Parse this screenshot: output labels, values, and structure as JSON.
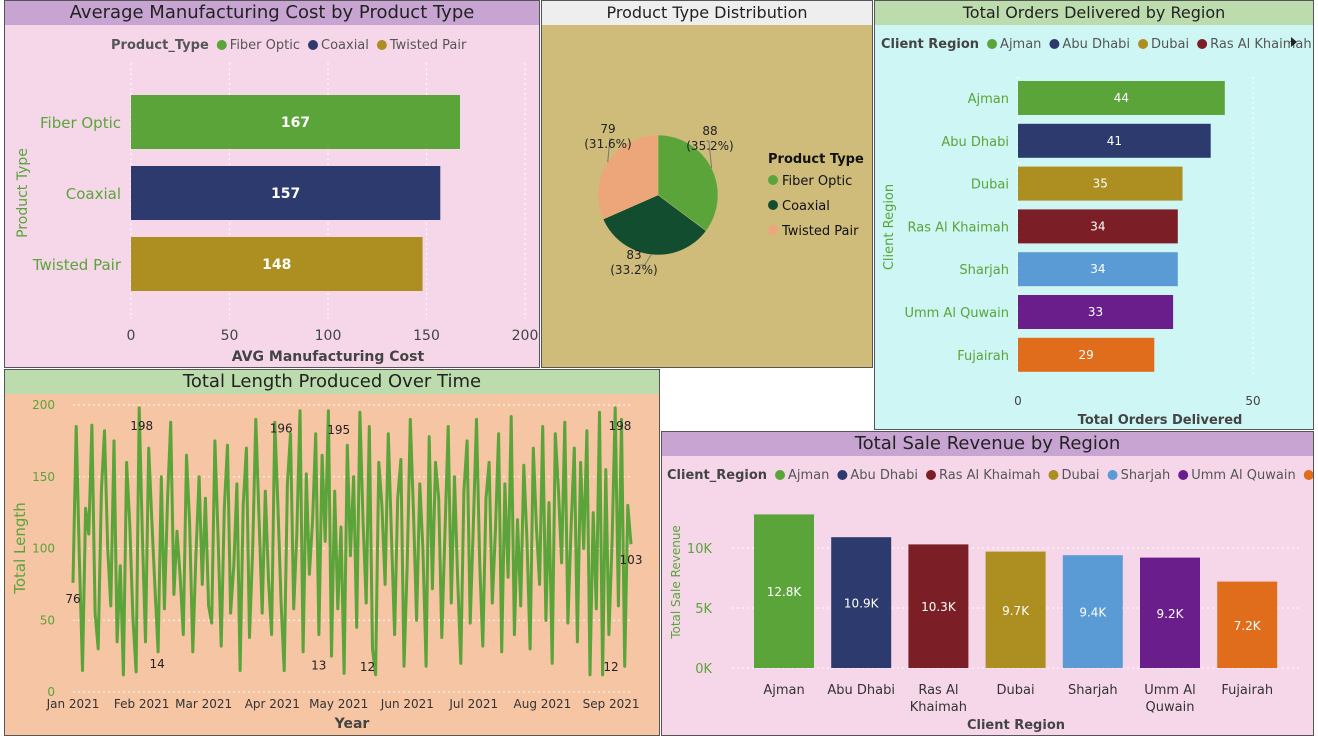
{
  "colors": {
    "fiber": "#5aa43a",
    "coaxial": "#2c3a6e",
    "twisted": "#ad8e20",
    "pie_fiber": "#5aa43a",
    "pie_coaxial": "#124d30",
    "pie_twisted": "#eda679",
    "ajman": "#5aa43a",
    "abudhabi": "#2c3a6e",
    "dubai": "#ad8e20",
    "rak": "#7c1e26",
    "sharjah": "#5b9bd5",
    "uaq": "#6a1e8c",
    "fujairah": "#e06d1c",
    "axis_green": "#5aa43a",
    "axis_text": "#444444"
  },
  "panel1": {
    "title": "Average Manufacturing Cost by Product Type",
    "legend_title": "Product_Type",
    "legend": [
      "Fiber Optic",
      "Coaxial",
      "Twisted Pair"
    ]
  },
  "panel2": {
    "title": "Product Type Distribution",
    "legend_title": "Product Type",
    "legend": [
      "Fiber Optic",
      "Coaxial",
      "Twisted Pair"
    ]
  },
  "panel3": {
    "title": "Total Orders Delivered by Region",
    "legend_title": "Client Region",
    "legend": [
      "Ajman",
      "Abu Dhabi",
      "Dubai",
      "Ras Al Khaimah"
    ]
  },
  "panel4": {
    "title": "Total Length Produced Over Time"
  },
  "panel5": {
    "title": "Total Sale Revenue by Region",
    "legend_title": "Client_Region",
    "legend": [
      "Ajman",
      "Abu Dhabi",
      "Ras Al Khaimah",
      "Dubai",
      "Sharjah",
      "Umm Al Quwain",
      "Fujairah"
    ]
  },
  "chart_data": [
    {
      "type": "bar",
      "orientation": "horizontal",
      "categories": [
        "Fiber Optic",
        "Coaxial",
        "Twisted Pair"
      ],
      "values": [
        167,
        157,
        148
      ],
      "data_labels": [
        "167",
        "157",
        "148"
      ],
      "xlabel": "AVG Manufacturing Cost",
      "ylabel": "Product Type",
      "xlim": [
        0,
        200
      ],
      "xticks": [
        0,
        50,
        100,
        150,
        200
      ],
      "xtick_labels": [
        "0",
        "50",
        "100",
        "150",
        "200"
      ]
    },
    {
      "type": "pie",
      "categories": [
        "Fiber Optic",
        "Coaxial",
        "Twisted Pair"
      ],
      "values": [
        88,
        83,
        79
      ],
      "value_labels": [
        "88",
        "83",
        "79"
      ],
      "percent_labels": [
        "(35.2%)",
        "(33.2%)",
        "(31.6%)"
      ]
    },
    {
      "type": "bar",
      "orientation": "horizontal",
      "categories": [
        "Ajman",
        "Abu Dhabi",
        "Dubai",
        "Ras Al Khaimah",
        "Sharjah",
        "Umm Al Quwain",
        "Fujairah"
      ],
      "values": [
        44,
        41,
        35,
        34,
        34,
        33,
        29
      ],
      "data_labels": [
        "44",
        "41",
        "35",
        "34",
        "34",
        "33",
        "29"
      ],
      "xlabel": "Total Orders Delivered",
      "ylabel": "Client Region",
      "xlim": [
        0,
        60
      ],
      "xticks": [
        0,
        50
      ],
      "xtick_labels": [
        "0",
        "50"
      ]
    },
    {
      "type": "line",
      "x_start": "2021-01-01",
      "x_end": "2021-09-10",
      "x_tick_labels": [
        "Jan 2021",
        "Feb 2021",
        "Mar 2021",
        "Apr 2021",
        "May 2021",
        "Jun 2021",
        "Jul 2021",
        "Aug 2021",
        "Sep 2021"
      ],
      "xlabel": "Year",
      "ylabel": "Total Length",
      "ylim": [
        0,
        200
      ],
      "yticks": [
        0,
        50,
        100,
        150,
        200
      ],
      "ytick_labels": [
        "0",
        "50",
        "100",
        "150",
        "200"
      ],
      "values": [
        76,
        185,
        95,
        15,
        128,
        110,
        186,
        55,
        30,
        140,
        182,
        100,
        60,
        175,
        35,
        88,
        12,
        160,
        118,
        52,
        14,
        198,
        108,
        35,
        170,
        120,
        72,
        28,
        150,
        58,
        135,
        188,
        68,
        112,
        80,
        40,
        165,
        118,
        28,
        95,
        150,
        75,
        135,
        60,
        48,
        175,
        110,
        32,
        128,
        172,
        55,
        88,
        145,
        15,
        130,
        170,
        38,
        100,
        190,
        122,
        55,
        140,
        78,
        40,
        188,
        130,
        62,
        15,
        145,
        180,
        58,
        110,
        196,
        28,
        152,
        82,
        120,
        180,
        40,
        165,
        105,
        196,
        25,
        140,
        58,
        115,
        13,
        172,
        95,
        150,
        45,
        195,
        120,
        62,
        185,
        30,
        12,
        160,
        130,
        75,
        180,
        110,
        40,
        135,
        162,
        18,
        88,
        190,
        125,
        50,
        145,
        100,
        18,
        178,
        72,
        160,
        135,
        38,
        112,
        185,
        62,
        150,
        80,
        20,
        140,
        175,
        48,
        118,
        190,
        90,
        32,
        135,
        160,
        62,
        112,
        180,
        28,
        145,
        80,
        192,
        40,
        120,
        60,
        158,
        105,
        30,
        170,
        115,
        75,
        185,
        50,
        132,
        20,
        180,
        140,
        90,
        188,
        48,
        115,
        170,
        35,
        160,
        100,
        182,
        12,
        125,
        58,
        195,
        12,
        155,
        40,
        105,
        198,
        60,
        190,
        18,
        130,
        103
      ],
      "annotations": [
        {
          "x": "2021-01-01",
          "value": 76,
          "label": "76"
        },
        {
          "x": "2021-02-08",
          "value": 14,
          "label": "14"
        },
        {
          "x": "2021-02-01",
          "value": 198,
          "label": "198"
        },
        {
          "x": "2021-04-05",
          "value": 196,
          "label": "196"
        },
        {
          "x": "2021-04-22",
          "value": 13,
          "label": "13"
        },
        {
          "x": "2021-05-01",
          "value": 195,
          "label": "195"
        },
        {
          "x": "2021-05-14",
          "value": 12,
          "label": "12"
        },
        {
          "x": "2021-09-01",
          "value": 12,
          "label": "12"
        },
        {
          "x": "2021-09-05",
          "value": 198,
          "label": "198"
        },
        {
          "x": "2021-09-10",
          "value": 103,
          "label": "103"
        }
      ]
    },
    {
      "type": "bar",
      "orientation": "vertical",
      "categories": [
        "Ajman",
        "Abu Dhabi",
        "Ras Al Khaimah",
        "Dubai",
        "Sharjah",
        "Umm Al Quwain",
        "Fujairah"
      ],
      "category_lines": [
        [
          "Ajman"
        ],
        [
          "Abu Dhabi"
        ],
        [
          "Ras Al",
          "Khaimah"
        ],
        [
          "Dubai"
        ],
        [
          "Sharjah"
        ],
        [
          "Umm Al",
          "Quwain"
        ],
        [
          "Fujairah"
        ]
      ],
      "values": [
        12800,
        10900,
        10300,
        9700,
        9400,
        9200,
        7200
      ],
      "data_labels": [
        "12.8K",
        "10.9K",
        "10.3K",
        "9.7K",
        "9.4K",
        "9.2K",
        "7.2K"
      ],
      "xlabel": "Client Region",
      "ylabel": "Total Sale Revenue",
      "ylim": [
        0,
        15000
      ],
      "yticks": [
        0,
        5000,
        10000
      ],
      "ytick_labels": [
        "0K",
        "5K",
        "10K"
      ]
    }
  ]
}
